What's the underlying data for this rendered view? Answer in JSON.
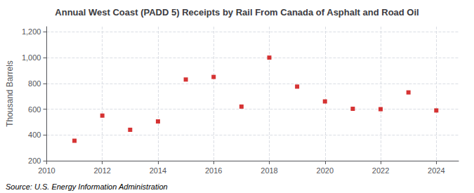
{
  "chart_data": {
    "type": "scatter",
    "title": "Annual West Coast (PADD 5) Receipts by Rail From Canada of Asphalt and Road Oil",
    "ylabel": "Thousand Barrels",
    "annotation": "Source: U.S. Energy Information Administration",
    "x": [
      2011,
      2012,
      2013,
      2014,
      2015,
      2016,
      2017,
      2018,
      2019,
      2020,
      2021,
      2022,
      2023,
      2024
    ],
    "values": [
      355,
      550,
      440,
      505,
      830,
      850,
      620,
      1000,
      775,
      660,
      603,
      600,
      730,
      590
    ],
    "color": "#cc0000",
    "marker": "square",
    "xlim": [
      2010,
      2024.8
    ],
    "ylim": [
      200,
      1240
    ],
    "xticks": [
      2010,
      2012,
      2014,
      2016,
      2018,
      2020,
      2022,
      2024
    ],
    "yticks": [
      200,
      400,
      600,
      800,
      {
        "value": 1000,
        "label": "1,000"
      },
      {
        "value": 1200,
        "label": "1,200"
      }
    ],
    "grid": true
  }
}
